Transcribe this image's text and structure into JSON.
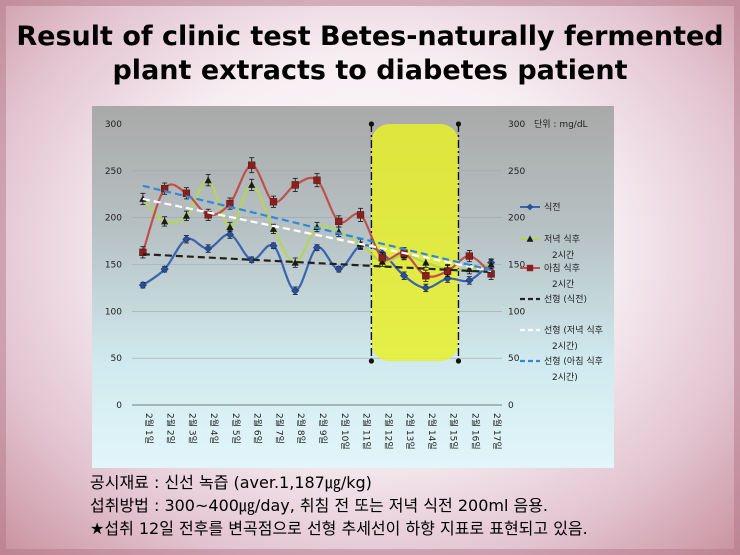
{
  "title_line1": "Result of clinic test Betes-naturally fermented",
  "title_line2": "plant extracts to diabetes patient",
  "unit_label": "단위 : mg/dL",
  "notes": [
    "공시재료 : 신선 녹즙 (aver.1,187㎍/kg)",
    "섭취방법 : 300~400㎍/day, 취침 전 또는 저녁 식전 200ml 음용.",
    "★섭취 12일 전후를 변곡점으로 선형 추세선이 하향 지표로 표현되고 있음."
  ],
  "chart_data": {
    "type": "line",
    "categories": [
      "2월 1일",
      "2월 2일",
      "2월 3일",
      "2월 4일",
      "2월 5일",
      "2월 6일",
      "2월 7일",
      "2월 8일",
      "2월 9일",
      "2월 10일",
      "2월 11일",
      "2월 12일",
      "2월 13일",
      "2월 14일",
      "2월 15일",
      "2월 16일",
      "2월 17일"
    ],
    "ylim": [
      0,
      300
    ],
    "yticks": [
      "0",
      "50",
      "100",
      "150",
      "200",
      "250",
      "300"
    ],
    "y2ticks": [
      "0",
      "50",
      "100",
      "150",
      "200",
      "250",
      "300"
    ],
    "series": [
      {
        "name": "식전",
        "color": "#3a64b0",
        "marker": "diamond",
        "values": [
          128,
          145,
          177,
          167,
          182,
          155,
          170,
          122,
          168,
          145,
          170,
          162,
          138,
          125,
          135,
          133,
          152
        ],
        "errors": [
          3,
          3,
          4,
          4,
          4,
          3,
          3,
          4,
          3,
          3,
          4,
          4,
          4,
          4,
          4,
          4,
          4
        ]
      },
      {
        "name": "저녁 식후 2시간",
        "color": "#b6d45a",
        "marker": "triangle",
        "values": [
          220,
          196,
          202,
          240,
          190,
          235,
          188,
          152,
          190,
          185,
          172,
          153,
          160,
          152,
          145,
          145,
          150
        ],
        "errors": [
          6,
          5,
          5,
          6,
          5,
          6,
          5,
          5,
          5,
          5,
          5,
          5,
          5,
          5,
          5,
          5,
          5
        ]
      },
      {
        "name": "아침 식후 2시간",
        "color": "#c0504d",
        "marker": "square",
        "values": [
          163,
          231,
          226,
          203,
          215,
          256,
          217,
          235,
          240,
          196,
          203,
          157,
          162,
          138,
          143,
          159,
          140
        ],
        "errors": [
          6,
          6,
          6,
          6,
          6,
          8,
          6,
          7,
          7,
          6,
          7,
          6,
          6,
          6,
          6,
          6,
          6
        ]
      }
    ],
    "trendlines": [
      {
        "name": "선형 (식전)",
        "color": "#222222",
        "start": 161,
        "end": 142
      },
      {
        "name": "선형 (저녁 식후 2시간)",
        "color": "#ffffff",
        "start": 220,
        "end": 143
      },
      {
        "name": "선형 (아침 식후 2시간)",
        "color": "#2e8ad8",
        "start": 234,
        "end": 144
      }
    ],
    "highlight": {
      "from_index": 11,
      "to_index": 14,
      "from_value": 47,
      "to_value": 300,
      "color": "#e8f02a"
    }
  }
}
